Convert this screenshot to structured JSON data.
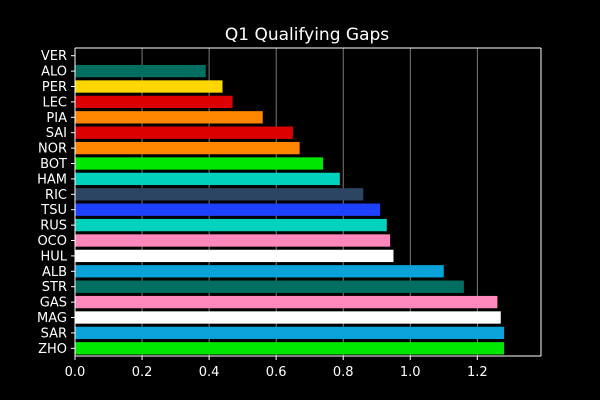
{
  "chart_data": {
    "type": "bar",
    "orientation": "horizontal",
    "title": "Q1 Qualifying Gaps",
    "xlabel": "",
    "ylabel": "",
    "xlim": [
      0,
      1.39
    ],
    "x_ticks": [
      0.0,
      0.2,
      0.4,
      0.6,
      0.8,
      1.0,
      1.2
    ],
    "x_tick_labels": [
      "0.0",
      "0.2",
      "0.4",
      "0.6",
      "0.8",
      "1.0",
      "1.2"
    ],
    "grid": "vertical",
    "background": "#000000",
    "categories": [
      "VER",
      "ALO",
      "PER",
      "LEC",
      "PIA",
      "SAI",
      "NOR",
      "BOT",
      "HAM",
      "RIC",
      "TSU",
      "RUS",
      "OCO",
      "HUL",
      "ALB",
      "STR",
      "GAS",
      "MAG",
      "SAR",
      "ZHO"
    ],
    "values": [
      0.0,
      0.39,
      0.44,
      0.47,
      0.56,
      0.65,
      0.67,
      0.74,
      0.79,
      0.86,
      0.91,
      0.93,
      0.94,
      0.95,
      1.1,
      1.16,
      1.26,
      1.27,
      1.28,
      1.28
    ],
    "colors": [
      "#1e41ff",
      "#006f62",
      "#ffd700",
      "#dc0000",
      "#ff8700",
      "#dc0000",
      "#ff8700",
      "#00e701",
      "#00d2be",
      "#2b4562",
      "#1e41ff",
      "#00d2be",
      "#ff87bc",
      "#ffffff",
      "#0aa2d9",
      "#006f62",
      "#ff87bc",
      "#ffffff",
      "#0aa2d9",
      "#00e701"
    ]
  }
}
